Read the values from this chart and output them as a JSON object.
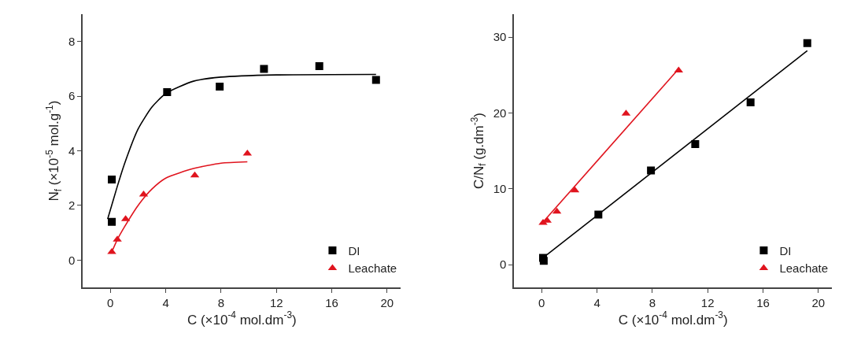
{
  "chart_data": [
    {
      "type": "scatter",
      "xlabel": "C (×10$^{-4}$ mol.dm$^{-3}$)",
      "ylabel": "N$_{f}$ (×10$^{-5}$ mol.g$^{-1}$)",
      "xlim": [
        -2,
        21
      ],
      "xticks": [
        0,
        4,
        8,
        12,
        16,
        20
      ],
      "ylim": [
        -1,
        9
      ],
      "yticks": [
        0,
        2,
        4,
        6,
        8
      ],
      "legend": "bottom right",
      "series": [
        {
          "name": "DI",
          "color": "#000000",
          "marker": "square",
          "x": [
            0.1,
            0.1,
            4.1,
            7.9,
            11.1,
            15.1,
            19.2
          ],
          "values": [
            2.95,
            1.4,
            6.15,
            6.35,
            7.0,
            7.1,
            6.6
          ]
        },
        {
          "name": "Leachate",
          "color": "#e0141e",
          "marker": "triangle",
          "x": [
            0.1,
            0.5,
            1.1,
            2.4,
            6.1,
            9.9
          ],
          "values": [
            0.3,
            0.75,
            1.5,
            2.4,
            3.1,
            3.9
          ]
        },
        {
          "type": "line",
          "color": "#000000",
          "marker": "none",
          "x": [
            -0.2,
            0.5,
            1,
            2,
            3,
            4,
            6,
            8,
            12,
            19.2
          ],
          "values": [
            1.5,
            2.7,
            3.5,
            4.8,
            5.6,
            6.1,
            6.55,
            6.7,
            6.78,
            6.8
          ]
        },
        {
          "type": "line",
          "color": "#e0141e",
          "marker": "none",
          "x": [
            0.1,
            0.5,
            1,
            2,
            3,
            4,
            6,
            8,
            9.9
          ],
          "values": [
            0.3,
            0.75,
            1.2,
            2.0,
            2.6,
            3.0,
            3.35,
            3.55,
            3.6
          ]
        }
      ]
    },
    {
      "type": "scatter",
      "xlabel": "C (×10$^{-4}$ mol.dm$^{-3}$)",
      "ylabel": "C/N$_{f}$ (g.dm$^{-3}$)",
      "xlim": [
        -2,
        21
      ],
      "xticks": [
        0,
        4,
        8,
        12,
        16,
        20
      ],
      "ylim": [
        -3,
        33
      ],
      "yticks": [
        0,
        10,
        20,
        30
      ],
      "legend": "bottom right",
      "series": [
        {
          "name": "DI",
          "color": "#000000",
          "marker": "square",
          "x": [
            0.1,
            0.15,
            4.1,
            7.9,
            11.1,
            15.1,
            19.2
          ],
          "values": [
            0.9,
            0.5,
            6.6,
            12.4,
            15.9,
            21.4,
            29.2
          ]
        },
        {
          "name": "Leachate",
          "color": "#e0141e",
          "marker": "triangle",
          "x": [
            0.1,
            0.4,
            1.1,
            2.4,
            6.1,
            9.9
          ],
          "values": [
            5.5,
            5.8,
            7.0,
            9.8,
            19.9,
            25.6
          ]
        },
        {
          "type": "line",
          "color": "#000000",
          "marker": "none",
          "x": [
            0.1,
            19.2
          ],
          "values": [
            0.9,
            28.2
          ]
        },
        {
          "type": "line",
          "color": "#e0141e",
          "marker": "none",
          "x": [
            0,
            9.9
          ],
          "values": [
            5.4,
            25.8
          ]
        }
      ]
    }
  ]
}
